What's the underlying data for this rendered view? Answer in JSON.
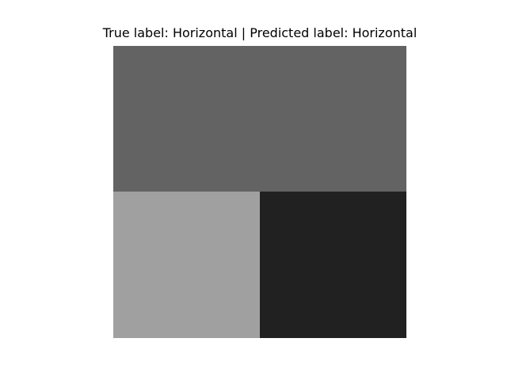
{
  "figure": {
    "title": "True label: Horizontal | Predicted label: Horizontal"
  },
  "image": {
    "blocks": [
      {
        "region": "top",
        "color": "#636363"
      },
      {
        "region": "bottom-left",
        "color": "#a0a0a0"
      },
      {
        "region": "bottom-right",
        "color": "#212121"
      }
    ]
  }
}
